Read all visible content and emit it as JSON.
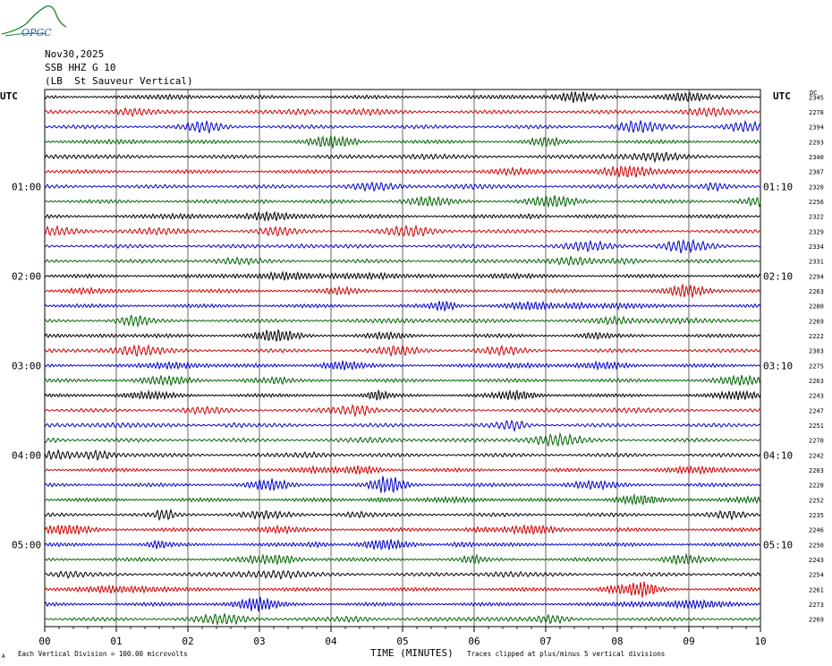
{
  "logo": {
    "text": "OPGC",
    "color": "#2a8a3a"
  },
  "header": {
    "date": "Nov30,2025",
    "channel": "SSB HHZ G 10",
    "station": "(LB  St Sauveur Vertical)"
  },
  "left_axis_title": "UTC",
  "right_axis_title": "UTC",
  "dc_header": "DC",
  "footer": {
    "scale_note": "Each Vertical Division =  100.00 microvolts",
    "clip_note": "Traces clipped at plus/minus 5 vertical divisions",
    "corner_mark": "A"
  },
  "colors": [
    "#000000",
    "#d00000",
    "#0000c8",
    "#006400"
  ],
  "chart_data": {
    "type": "line",
    "xlabel": "TIME (MINUTES)",
    "x_ticks": [
      "00",
      "01",
      "02",
      "03",
      "04",
      "05",
      "06",
      "07",
      "08",
      "09",
      "10"
    ],
    "xlim": [
      0,
      10
    ],
    "left_time_labels": [
      {
        "row": 6,
        "label": "01:00"
      },
      {
        "row": 12,
        "label": "02:00"
      },
      {
        "row": 18,
        "label": "03:00"
      },
      {
        "row": 24,
        "label": "04:00"
      },
      {
        "row": 30,
        "label": "05:00"
      }
    ],
    "right_time_labels": [
      {
        "row": 6,
        "label": "01:10"
      },
      {
        "row": 12,
        "label": "02:10"
      },
      {
        "row": 18,
        "label": "03:10"
      },
      {
        "row": 24,
        "label": "04:10"
      },
      {
        "row": 30,
        "label": "05:10"
      }
    ],
    "dc_values": [
      "2345",
      "2278",
      "2394",
      "2293",
      "2340",
      "2307",
      "2320",
      "2256",
      "2322",
      "2329",
      "2334",
      "2331",
      "2294",
      "2263",
      "2280",
      "2269",
      "2222",
      "2303",
      "2275",
      "2263",
      "2243",
      "2247",
      "2251",
      "2270",
      "2242",
      "2203",
      "2228",
      "2252",
      "2235",
      "2246",
      "2250",
      "2243",
      "2254",
      "2261",
      "2273",
      "2269"
    ]
  }
}
